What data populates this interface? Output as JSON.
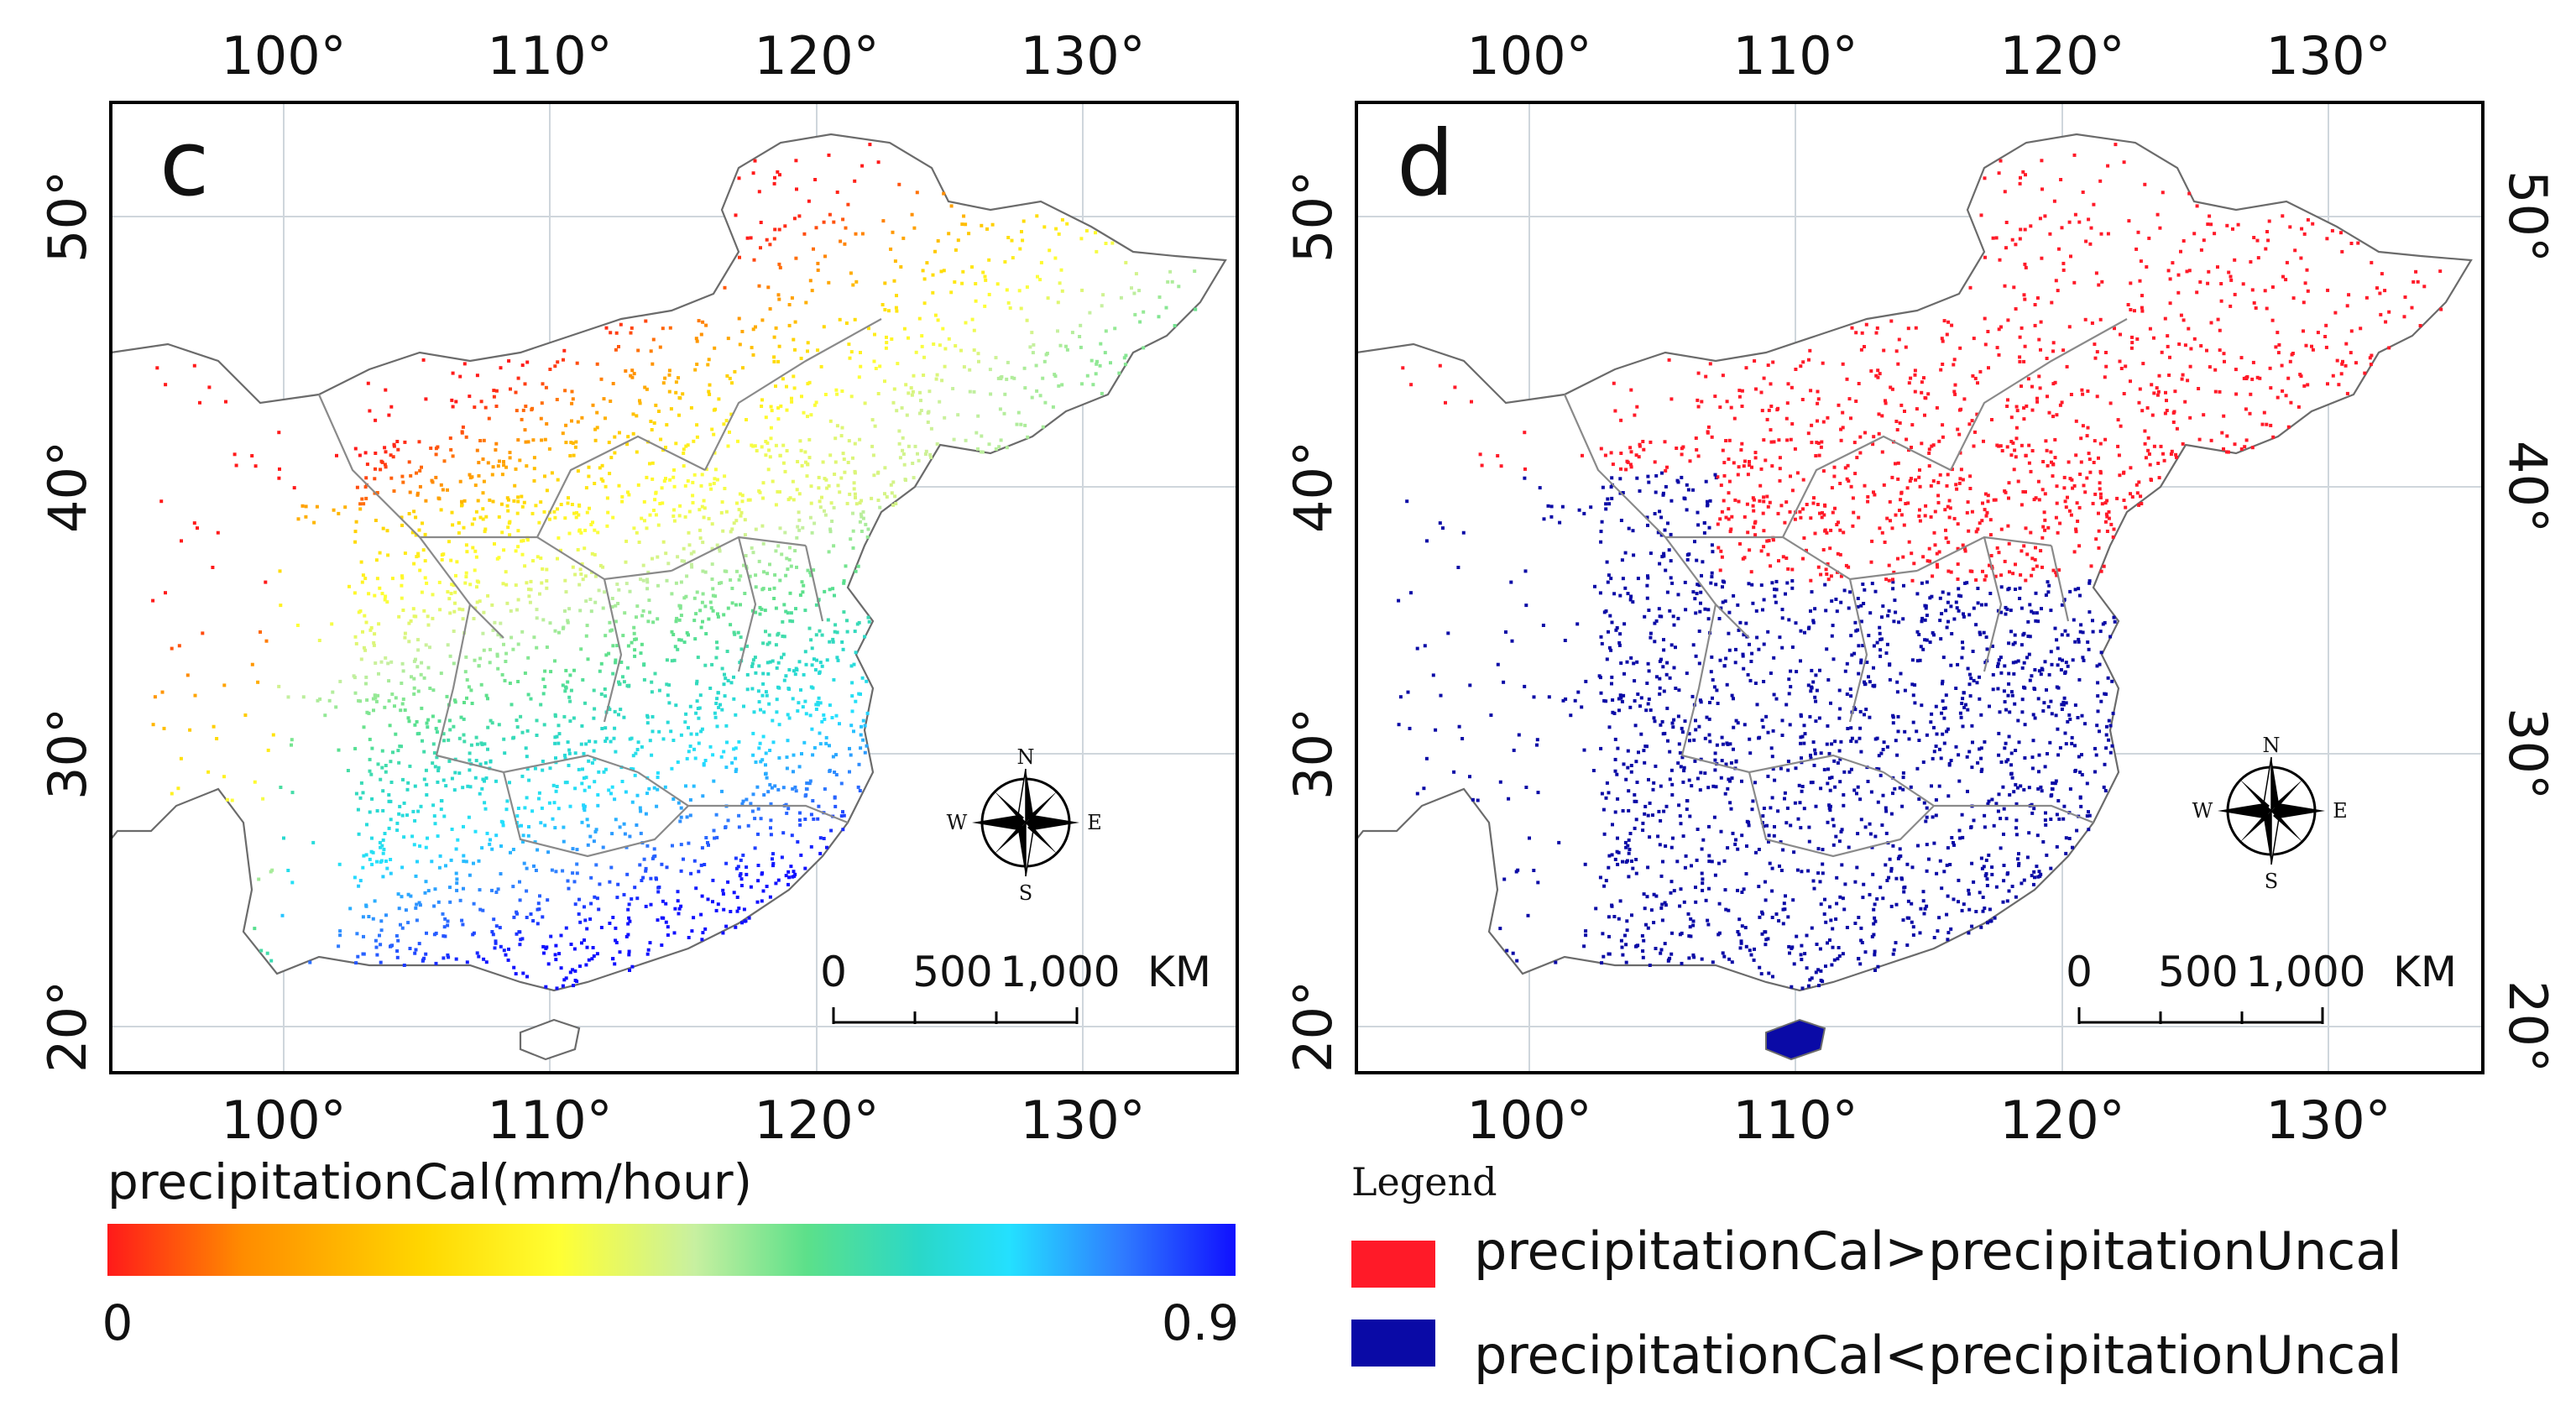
{
  "figure": {
    "panels": [
      {
        "id": "c",
        "letter": "c",
        "lon_ticks": [
          "100°",
          "110°",
          "120°",
          "130°"
        ],
        "lat_ticks": [
          "20°",
          "30°",
          "40°",
          "50°"
        ],
        "scale_labels": [
          "0",
          "500",
          "1,000",
          "KM"
        ],
        "compass": {
          "n": "N",
          "s": "S",
          "e": "E",
          "w": "W"
        }
      },
      {
        "id": "d",
        "letter": "d",
        "lon_ticks": [
          "100°",
          "110°",
          "120°",
          "130°"
        ],
        "lat_ticks": [
          "20°",
          "30°",
          "40°",
          "50°"
        ],
        "scale_labels": [
          "0",
          "500",
          "1,000",
          "KM"
        ],
        "compass": {
          "n": "N",
          "s": "S",
          "e": "E",
          "w": "W"
        }
      }
    ],
    "colorbar": {
      "title": "precipitationCal(mm/hour)",
      "min_label": "0",
      "max_label": "0.9",
      "min": 0,
      "max": 0.9,
      "colors": [
        "#ff1a1a",
        "#ff8c00",
        "#ffd700",
        "#ffff33",
        "#c8f0a0",
        "#5ce08a",
        "#2ad8c8",
        "#24e0ff",
        "#2f7bff",
        "#1010ff"
      ]
    },
    "legend": {
      "title": "Legend",
      "items": [
        {
          "label": "precipitationCal>precipitationUncal",
          "color": "#ff1a28"
        },
        {
          "label": "precipitationCal<precipitationUncal",
          "color": "#0a0aa6"
        }
      ]
    }
  }
}
